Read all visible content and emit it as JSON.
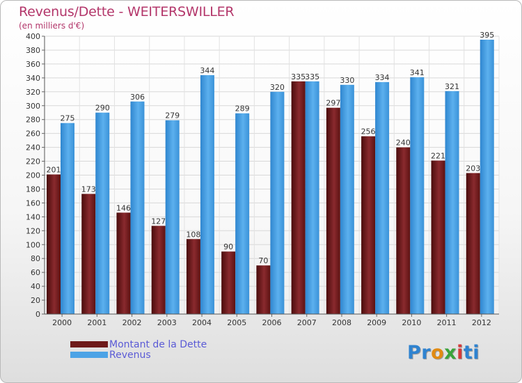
{
  "header": {
    "title": "Revenus/Dette - WEITERSWILLER",
    "subtitle": "(en milliers d'€)"
  },
  "legend": {
    "items": [
      {
        "label": "Montant de la Dette",
        "color": "#6e1a1a"
      },
      {
        "label": "Revenus",
        "color": "#4ca3e6"
      }
    ]
  },
  "logo": {
    "text": "Proxiti"
  },
  "chart_data": {
    "type": "bar",
    "title": "Revenus/Dette - WEITERSWILLER",
    "subtitle": "(en milliers d'€)",
    "categories": [
      "2000",
      "2001",
      "2002",
      "2003",
      "2004",
      "2005",
      "2006",
      "2007",
      "2008",
      "2009",
      "2010",
      "2011",
      "2012"
    ],
    "series": [
      {
        "name": "Montant de la Dette",
        "color": "#6e1a1a",
        "values": [
          201,
          173,
          146,
          127,
          108,
          90,
          70,
          335,
          297,
          256,
          240,
          221,
          203
        ]
      },
      {
        "name": "Revenus",
        "color": "#4ca3e6",
        "values": [
          275,
          290,
          306,
          279,
          344,
          289,
          320,
          335,
          330,
          334,
          341,
          321,
          395
        ]
      }
    ],
    "ylim": [
      0,
      400
    ],
    "yticks": [
      0,
      20,
      40,
      60,
      80,
      100,
      120,
      140,
      160,
      180,
      200,
      220,
      240,
      260,
      280,
      300,
      320,
      340,
      360,
      380,
      400
    ],
    "grid": true,
    "legend_position": "bottom-left",
    "data_labels": true
  }
}
